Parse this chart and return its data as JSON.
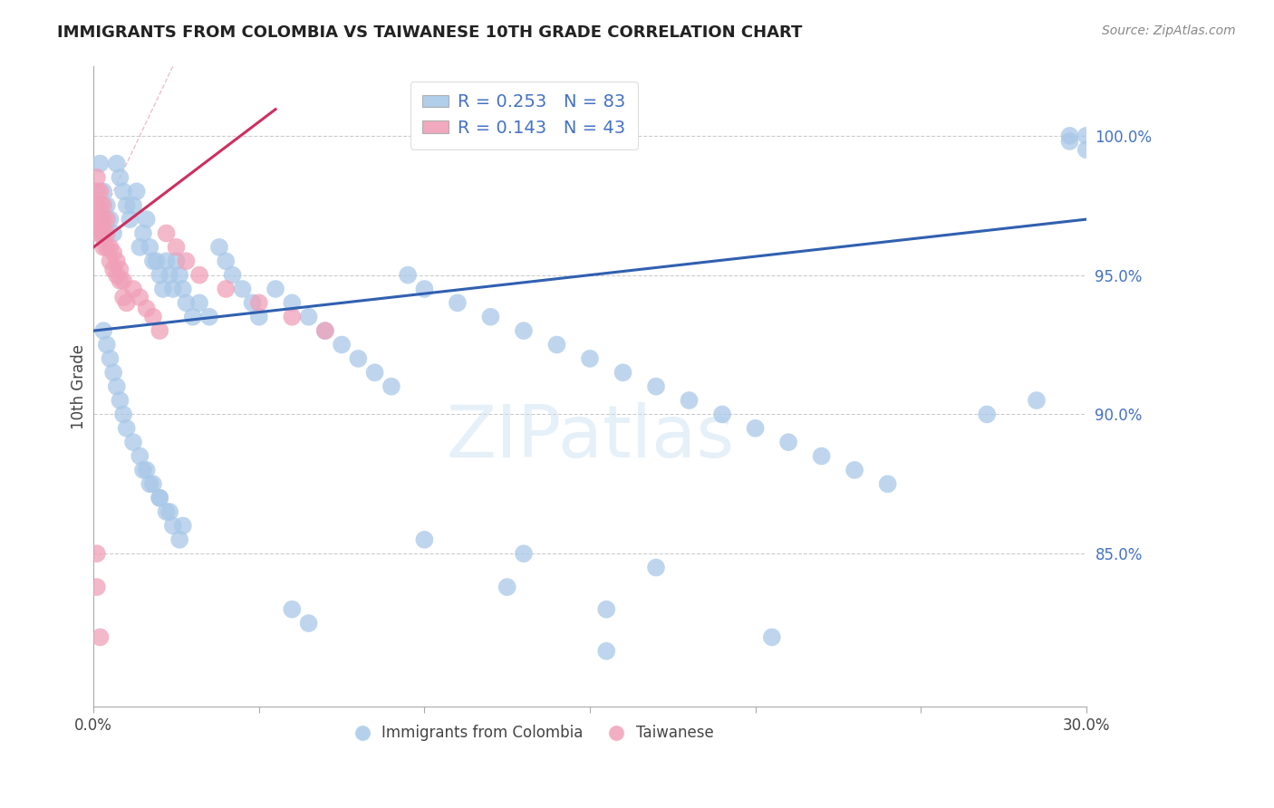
{
  "title": "IMMIGRANTS FROM COLOMBIA VS TAIWANESE 10TH GRADE CORRELATION CHART",
  "source": "Source: ZipAtlas.com",
  "ylabel": "10th Grade",
  "watermark": "ZIPatlas",
  "legend_blue_r": "R = 0.253",
  "legend_blue_n": "N = 83",
  "legend_pink_r": "R = 0.143",
  "legend_pink_n": "N = 43",
  "blue_color": "#a8c8e8",
  "pink_color": "#f0a0b8",
  "blue_line_color": "#3060b0",
  "pink_line_color": "#cc3060",
  "pink_dash_color": "#e8b0c0",
  "xlim": [
    0.0,
    0.3
  ],
  "ylim": [
    0.795,
    1.025
  ],
  "yticks": [
    0.85,
    0.9,
    0.95,
    1.0
  ],
  "ytick_labels": [
    "85.0%",
    "90.0%",
    "95.0%",
    "100.0%"
  ],
  "xtick_positions": [
    0.0,
    0.05,
    0.1,
    0.15,
    0.2,
    0.25,
    0.3
  ],
  "xtick_labels": [
    "0.0%",
    "",
    "",
    "",
    "",
    "",
    "30.0%"
  ],
  "colombia_x": [
    0.002,
    0.003,
    0.004,
    0.005,
    0.006,
    0.007,
    0.008,
    0.009,
    0.01,
    0.011,
    0.012,
    0.013,
    0.014,
    0.015,
    0.016,
    0.017,
    0.018,
    0.019,
    0.02,
    0.021,
    0.022,
    0.023,
    0.024,
    0.025,
    0.026,
    0.027,
    0.028,
    0.03,
    0.032,
    0.035,
    0.038,
    0.04,
    0.042,
    0.045,
    0.048,
    0.05,
    0.055,
    0.06,
    0.065,
    0.07,
    0.075,
    0.08,
    0.085,
    0.09,
    0.095,
    0.1,
    0.11,
    0.12,
    0.13,
    0.14,
    0.15,
    0.16,
    0.17,
    0.18,
    0.19,
    0.2,
    0.21,
    0.22,
    0.23,
    0.24,
    0.003,
    0.004,
    0.005,
    0.006,
    0.007,
    0.008,
    0.009,
    0.01,
    0.012,
    0.014,
    0.016,
    0.018,
    0.02,
    0.022,
    0.024,
    0.026,
    0.27,
    0.285,
    0.295,
    0.3,
    0.3,
    0.295
  ],
  "colombia_y": [
    0.99,
    0.98,
    0.975,
    0.97,
    0.965,
    0.99,
    0.985,
    0.98,
    0.975,
    0.97,
    0.975,
    0.98,
    0.96,
    0.965,
    0.97,
    0.96,
    0.955,
    0.955,
    0.95,
    0.945,
    0.955,
    0.95,
    0.945,
    0.955,
    0.95,
    0.945,
    0.94,
    0.935,
    0.94,
    0.935,
    0.96,
    0.955,
    0.95,
    0.945,
    0.94,
    0.935,
    0.945,
    0.94,
    0.935,
    0.93,
    0.925,
    0.92,
    0.915,
    0.91,
    0.95,
    0.945,
    0.94,
    0.935,
    0.93,
    0.925,
    0.92,
    0.915,
    0.91,
    0.905,
    0.9,
    0.895,
    0.89,
    0.885,
    0.88,
    0.875,
    0.93,
    0.925,
    0.92,
    0.915,
    0.91,
    0.905,
    0.9,
    0.895,
    0.89,
    0.885,
    0.88,
    0.875,
    0.87,
    0.865,
    0.86,
    0.855,
    0.9,
    0.905,
    1.0,
    1.0,
    0.995,
    0.998
  ],
  "colombia_y_low": [
    0.88,
    0.875,
    0.87,
    0.865,
    0.86,
    0.855,
    0.85,
    0.845,
    0.838,
    0.83,
    0.82,
    0.815,
    0.83,
    0.825
  ],
  "colombia_x_low": [
    0.015,
    0.017,
    0.02,
    0.023,
    0.027,
    0.1,
    0.13,
    0.17,
    0.125,
    0.155,
    0.205,
    0.155,
    0.06,
    0.065
  ],
  "taiwanese_x": [
    0.001,
    0.001,
    0.001,
    0.001,
    0.001,
    0.002,
    0.002,
    0.002,
    0.002,
    0.003,
    0.003,
    0.003,
    0.003,
    0.004,
    0.004,
    0.004,
    0.005,
    0.005,
    0.006,
    0.006,
    0.007,
    0.007,
    0.008,
    0.008,
    0.009,
    0.009,
    0.01,
    0.012,
    0.014,
    0.016,
    0.018,
    0.02,
    0.022,
    0.025,
    0.028,
    0.032,
    0.04,
    0.05,
    0.06,
    0.07,
    0.001,
    0.001,
    0.002
  ],
  "taiwanese_y": [
    0.985,
    0.98,
    0.975,
    0.97,
    0.965,
    0.98,
    0.975,
    0.97,
    0.965,
    0.975,
    0.97,
    0.965,
    0.96,
    0.97,
    0.965,
    0.96,
    0.96,
    0.955,
    0.958,
    0.952,
    0.955,
    0.95,
    0.952,
    0.948,
    0.948,
    0.942,
    0.94,
    0.945,
    0.942,
    0.938,
    0.935,
    0.93,
    0.965,
    0.96,
    0.955,
    0.95,
    0.945,
    0.94,
    0.935,
    0.93,
    0.85,
    0.838,
    0.82
  ]
}
